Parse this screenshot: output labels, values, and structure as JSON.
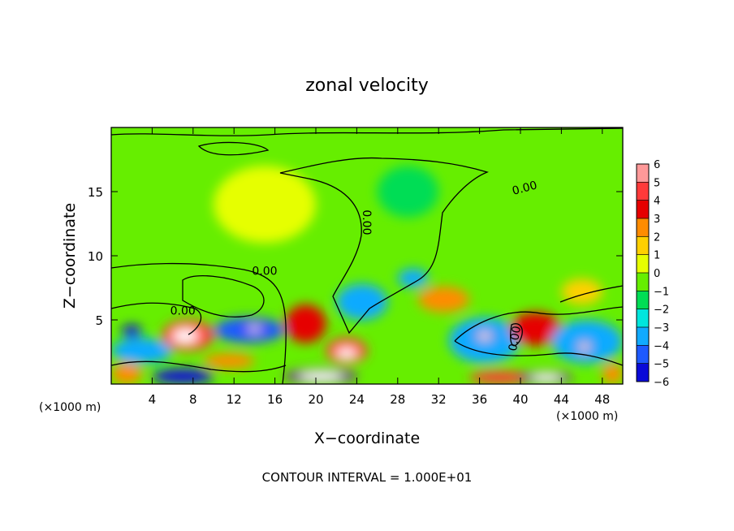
{
  "chart_data": {
    "type": "heatmap",
    "title": "zonal velocity",
    "xlabel": "X−coordinate",
    "ylabel": "Z−coordinate",
    "x_unit_left": "(×1000 m)",
    "x_unit_right": "(×1000 m)",
    "footer": "CONTOUR INTERVAL = 1.000E+01",
    "xlim": [
      0,
      50
    ],
    "ylim": [
      0,
      20
    ],
    "x_ticks": [
      4,
      8,
      12,
      16,
      20,
      24,
      28,
      32,
      36,
      40,
      44,
      48
    ],
    "y_ticks": [
      5,
      10,
      15
    ],
    "contour_labels": [
      {
        "text": "0.00",
        "x": 40.5,
        "y": 15.0,
        "angle": -15
      },
      {
        "text": "0.00",
        "x": 24.6,
        "y": 12.6,
        "angle": 90
      },
      {
        "text": "0.00",
        "x": 15.0,
        "y": 8.5,
        "angle": 0
      },
      {
        "text": "0.00",
        "x": 7.0,
        "y": 5.4,
        "angle": 0
      },
      {
        "text": "0.00",
        "x": 39.8,
        "y": 3.5,
        "angle": -80
      }
    ],
    "colorbar": {
      "levels": [
        6,
        5,
        4,
        3,
        2,
        1,
        0,
        -1,
        -2,
        -3,
        -4,
        -5,
        -6
      ],
      "colors": [
        "#ff9999",
        "#ff3a3a",
        "#e60000",
        "#ff8c00",
        "#ffd000",
        "#e6ff00",
        "#66ee00",
        "#00dd55",
        "#00e6dd",
        "#11aaff",
        "#1e5aff",
        "#0a0ad8",
        "#7a0aa8"
      ]
    },
    "cells": [
      {
        "x": [
          0,
          3
        ],
        "y": [
          0,
          1.6
        ],
        "v": 3
      },
      {
        "x": [
          0,
          6
        ],
        "y": [
          1.6,
          3.6
        ],
        "v": -3
      },
      {
        "x": [
          1,
          3
        ],
        "y": [
          3.6,
          4.6
        ],
        "v": -5
      },
      {
        "x": [
          4,
          10
        ],
        "y": [
          0,
          1.2
        ],
        "v": -5
      },
      {
        "x": [
          5,
          10
        ],
        "y": [
          2.6,
          5.0
        ],
        "v": 5
      },
      {
        "x": [
          6,
          8.5
        ],
        "y": [
          3.2,
          4.3
        ],
        "v": 6
      },
      {
        "x": [
          9,
          14
        ],
        "y": [
          1.2,
          2.4
        ],
        "v": 3
      },
      {
        "x": [
          10,
          17
        ],
        "y": [
          3.2,
          5.2
        ],
        "v": -4
      },
      {
        "x": [
          13,
          15
        ],
        "y": [
          4.0,
          4.6
        ],
        "v": -6
      },
      {
        "x": [
          17,
          24
        ],
        "y": [
          0,
          1.2
        ],
        "v": -6
      },
      {
        "x": [
          17,
          21
        ],
        "y": [
          3.2,
          6.2
        ],
        "v": 4
      },
      {
        "x": [
          21,
          25
        ],
        "y": [
          1.6,
          3.6
        ],
        "v": 5
      },
      {
        "x": [
          22,
          24
        ],
        "y": [
          2.0,
          2.8
        ],
        "v": 6
      },
      {
        "x": [
          22,
          27
        ],
        "y": [
          5.0,
          7.8
        ],
        "v": -3
      },
      {
        "x": [
          28,
          31
        ],
        "y": [
          7.5,
          9.0
        ],
        "v": -3
      },
      {
        "x": [
          30,
          35
        ],
        "y": [
          5.6,
          7.6
        ],
        "v": 3
      },
      {
        "x": [
          33,
          40
        ],
        "y": [
          1.6,
          5.2
        ],
        "v": -3
      },
      {
        "x": [
          35.5,
          37.5
        ],
        "y": [
          3.3,
          4.2
        ],
        "v": -6
      },
      {
        "x": [
          35,
          41
        ],
        "y": [
          0,
          1.0
        ],
        "v": 5
      },
      {
        "x": [
          39,
          44
        ],
        "y": [
          3.0,
          5.6
        ],
        "v": 4
      },
      {
        "x": [
          40,
          45
        ],
        "y": [
          0,
          1.0
        ],
        "v": -6
      },
      {
        "x": [
          43,
          50
        ],
        "y": [
          1.6,
          5.0
        ],
        "v": -3
      },
      {
        "x": [
          45.5,
          47
        ],
        "y": [
          2.4,
          3.4
        ],
        "v": -6
      },
      {
        "x": [
          44,
          48
        ],
        "y": [
          6.2,
          8.2
        ],
        "v": 2
      },
      {
        "x": [
          10,
          20
        ],
        "y": [
          11,
          17
        ],
        "v": 1
      },
      {
        "x": [
          26,
          32
        ],
        "y": [
          13,
          17
        ],
        "v": -1
      },
      {
        "x": [
          48,
          50
        ],
        "y": [
          0,
          1.6
        ],
        "v": 3
      }
    ]
  }
}
